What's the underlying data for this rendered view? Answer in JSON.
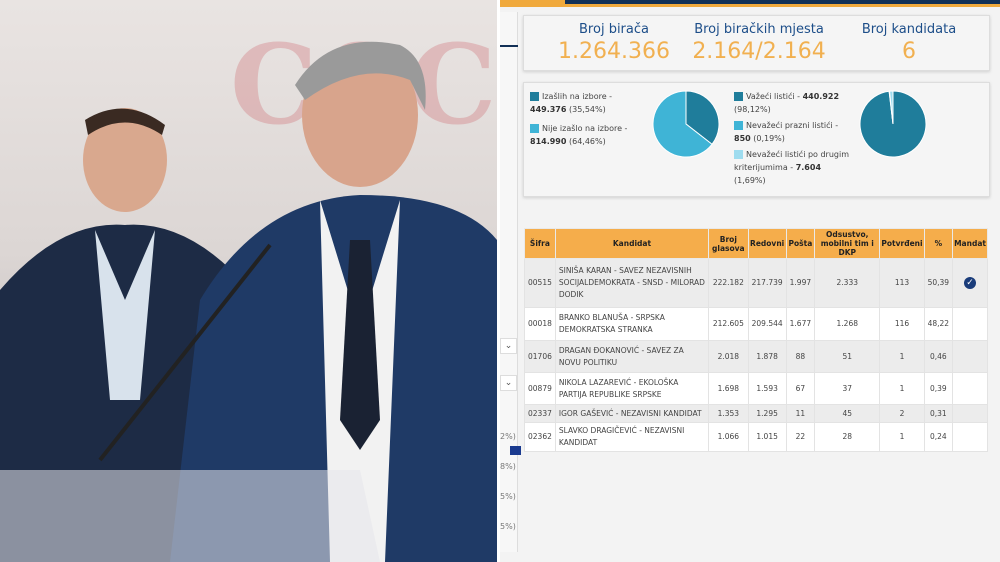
{
  "stats": [
    {
      "label": "Broj birača",
      "value": "1.264.366"
    },
    {
      "label": "Broj biračkih mjesta",
      "value": "2.164/2.164"
    },
    {
      "label": "Broj kandidata",
      "value": "6"
    }
  ],
  "turnout": {
    "legend": [
      {
        "label": "Izašlih na izbore - ",
        "value": "449.376",
        "pct": "(35,54%)",
        "color": "#1f7d9b",
        "share": 35.54
      },
      {
        "label": "Nije izašlo na izbore - ",
        "value": "814.990",
        "pct": "(64,46%)",
        "color": "#3fb4d6",
        "share": 64.46
      }
    ]
  },
  "ballots": {
    "legend": [
      {
        "label": "Važeći listići - ",
        "value": "440.922",
        "pct": "(98,12%)",
        "color": "#1f7d9b",
        "share": 98.12
      },
      {
        "label": "Nevažeći prazni listići - ",
        "value": "850",
        "pct": "(0,19%)",
        "color": "#3fb4d6",
        "share": 0.19
      },
      {
        "label": "Nevažeći listići po drugim kriterijumima - ",
        "value": "7.604",
        "pct": "(1,69%)",
        "color": "#9edcef",
        "share": 1.69
      }
    ]
  },
  "table": {
    "headers": [
      "Šifra",
      "Kandidat",
      "Broj glasova",
      "Redovni",
      "Pošta",
      "Odsustvo, mobilni tim i DKP",
      "Potvrđeni",
      "%",
      "Mandat"
    ],
    "rows": [
      {
        "code": "00515",
        "name": "SINIŠA KARAN - SAVEZ NEZAVISNIH SOCIJALDEMOKRATA - SNSD - MILORAD DODIK",
        "votes": "222.182",
        "regular": "217.739",
        "mail": "1.997",
        "absent": "2.333",
        "confirmed": "113",
        "pct": "50,39",
        "mandate": true
      },
      {
        "code": "00018",
        "name": "BRANKO BLANUŠA - SRPSKA DEMOKRATSKA STRANKA",
        "votes": "212.605",
        "regular": "209.544",
        "mail": "1.677",
        "absent": "1.268",
        "confirmed": "116",
        "pct": "48,22",
        "mandate": false
      },
      {
        "code": "01706",
        "name": "DRAGAN ĐOKANOVIĆ - SAVEZ ZA NOVU POLITIKU",
        "votes": "2.018",
        "regular": "1.878",
        "mail": "88",
        "absent": "51",
        "confirmed": "1",
        "pct": "0,46",
        "mandate": false
      },
      {
        "code": "00879",
        "name": "NIKOLA LAZAREVIĆ - EKOLOŠKA PARTIJA REPUBLIKE SRPSKE",
        "votes": "1.698",
        "regular": "1.593",
        "mail": "67",
        "absent": "37",
        "confirmed": "1",
        "pct": "0,39",
        "mandate": false
      },
      {
        "code": "02337",
        "name": "IGOR GAŠEVIĆ - NEZAVISNI KANDIDAT",
        "votes": "1.353",
        "regular": "1.295",
        "mail": "11",
        "absent": "45",
        "confirmed": "2",
        "pct": "0,31",
        "mandate": false
      },
      {
        "code": "02362",
        "name": "SLAVKO DRAGIČEVIĆ - NEZAVISNI KANDIDAT",
        "votes": "1.066",
        "regular": "1.015",
        "mail": "22",
        "absent": "28",
        "confirmed": "1",
        "pct": "0,24",
        "mandate": false
      }
    ]
  },
  "side_fragments": [
    "2%)",
    "8%)",
    "5%)",
    "5%)"
  ]
}
